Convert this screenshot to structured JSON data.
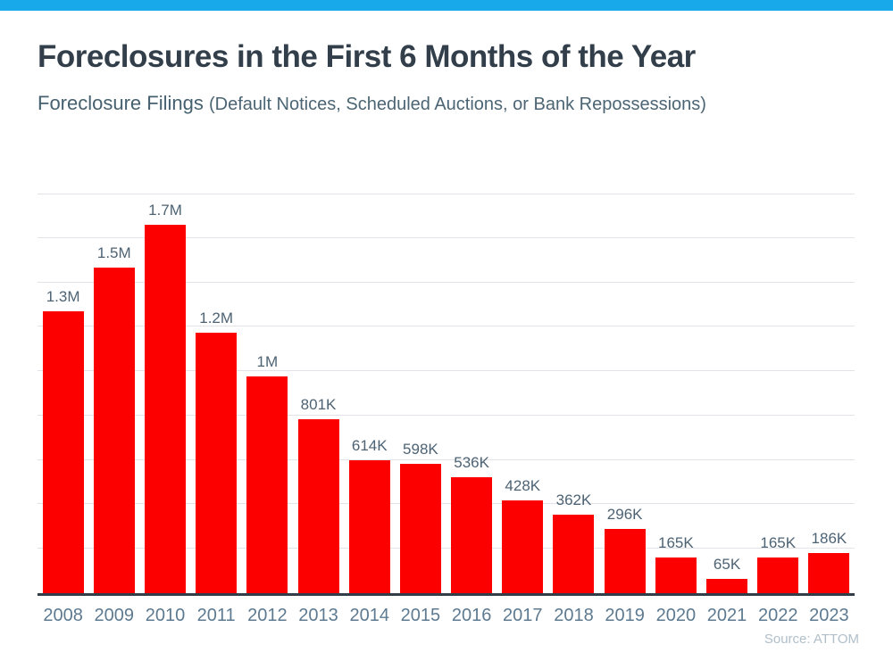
{
  "page": {
    "accent_color": "#18a9ea",
    "background_color": "#ffffff"
  },
  "header": {
    "title": "Foreclosures in the First 6 Months of the Year",
    "subtitle_main": "Foreclosure Filings",
    "subtitle_note": "(Default Notices, Scheduled Auctions, or Bank Repossessions)"
  },
  "chart_data": {
    "type": "bar",
    "title": "Foreclosures in the First 6 Months of the Year",
    "subtitle": "Foreclosure Filings (Default Notices, Scheduled Auctions, or Bank Repossessions)",
    "categories": [
      "2008",
      "2009",
      "2010",
      "2011",
      "2012",
      "2013",
      "2014",
      "2015",
      "2016",
      "2017",
      "2018",
      "2019",
      "2020",
      "2021",
      "2022",
      "2023"
    ],
    "values": [
      1300000,
      1500000,
      1700000,
      1200000,
      1000000,
      801000,
      614000,
      598000,
      536000,
      428000,
      362000,
      296000,
      165000,
      65000,
      165000,
      186000
    ],
    "value_labels": [
      "1.3M",
      "1.5M",
      "1.7M",
      "1.2M",
      "1M",
      "801K",
      "614K",
      "598K",
      "536K",
      "428K",
      "362K",
      "296K",
      "165K",
      "65K",
      "165K",
      "186K"
    ],
    "bar_color": "#fc0000",
    "gridline_color": "#e2e2e8",
    "axis_line_color": "#333d47",
    "label_color": "#4d6374",
    "tick_label_color": "#5d7a90",
    "xlabel": "",
    "ylabel": "",
    "ylim": [
      0,
      1840000
    ],
    "gridline_step": 200000,
    "grid": true,
    "legend": false
  },
  "footer": {
    "source": "Source: ATTOM"
  }
}
